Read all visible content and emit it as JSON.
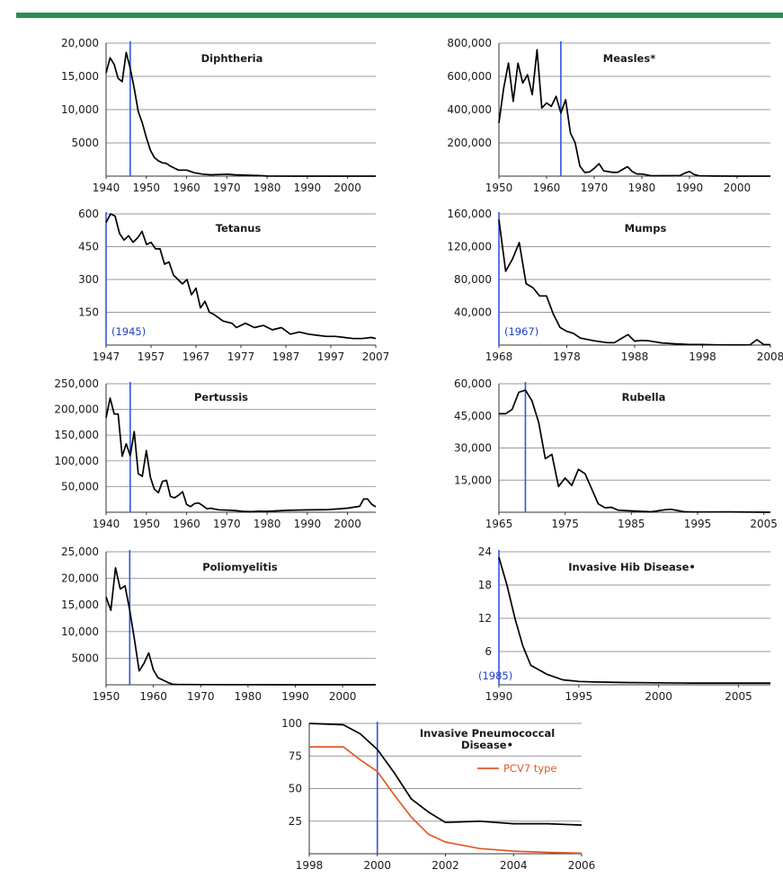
{
  "colors": {
    "series": "#000000",
    "series_alt": "#e05a2a",
    "marker": "#3355dd",
    "grid": "#999999",
    "header_bar": "#2e8b57"
  },
  "chart_data": [
    {
      "id": "diphtheria",
      "type": "line",
      "title": "Diphtheria",
      "xlim": [
        1940,
        2007
      ],
      "ylim": [
        0,
        20000
      ],
      "xticks": [
        1940,
        1950,
        1960,
        1970,
        1980,
        1990,
        2000
      ],
      "xtick_labels": [
        "1940",
        "1950",
        "1960",
        "1970",
        "1980",
        "1990",
        "2000"
      ],
      "yticks": [
        5000,
        10000,
        15000,
        20000
      ],
      "ytick_labels": [
        "5000",
        "10,000",
        "15,000",
        "20,000"
      ],
      "marker_x": 1946,
      "annotation": "",
      "series": [
        {
          "x": [
            1940,
            1941,
            1942,
            1943,
            1944,
            1945,
            1946,
            1947,
            1948,
            1949,
            1950,
            1951,
            1952,
            1953,
            1954,
            1955,
            1956,
            1957,
            1958,
            1960,
            1962,
            1964,
            1966,
            1968,
            1970,
            1972,
            1974,
            1976,
            1978,
            1980,
            1985,
            1990,
            1995,
            2000,
            2007
          ],
          "y": [
            15500,
            17800,
            16800,
            14700,
            14200,
            18600,
            16200,
            13200,
            9700,
            8000,
            5800,
            3900,
            2800,
            2300,
            2000,
            1900,
            1500,
            1200,
            900,
            900,
            500,
            300,
            200,
            250,
            300,
            200,
            180,
            120,
            80,
            20,
            5,
            5,
            5,
            5,
            0
          ]
        }
      ]
    },
    {
      "id": "measles",
      "type": "line",
      "title": "Measles*",
      "xlim": [
        1950,
        2007
      ],
      "ylim": [
        0,
        800000
      ],
      "xticks": [
        1950,
        1960,
        1970,
        1980,
        1990,
        2000
      ],
      "xtick_labels": [
        "1950",
        "1960",
        "1970",
        "1980",
        "1990",
        "2000"
      ],
      "yticks": [
        200000,
        400000,
        600000,
        800000
      ],
      "ytick_labels": [
        "200,000",
        "400,000",
        "600,000",
        "800,000"
      ],
      "marker_x": 1963,
      "annotation": "",
      "series": [
        {
          "x": [
            1950,
            1951,
            1952,
            1953,
            1954,
            1955,
            1956,
            1957,
            1958,
            1959,
            1960,
            1961,
            1962,
            1963,
            1964,
            1965,
            1966,
            1967,
            1968,
            1969,
            1970,
            1971,
            1972,
            1973,
            1974,
            1975,
            1976,
            1977,
            1978,
            1979,
            1980,
            1982,
            1985,
            1988,
            1989,
            1990,
            1991,
            1992,
            1995,
            2000,
            2007
          ],
          "y": [
            320000,
            530000,
            680000,
            450000,
            680000,
            560000,
            610000,
            490000,
            760000,
            410000,
            440000,
            420000,
            480000,
            380000,
            460000,
            260000,
            200000,
            60000,
            22000,
            25000,
            47000,
            75000,
            32000,
            27000,
            22000,
            24000,
            41000,
            57000,
            27000,
            13000,
            13000,
            2000,
            2800,
            3400,
            18000,
            28000,
            9600,
            2200,
            300,
            90,
            40
          ]
        }
      ]
    },
    {
      "id": "tetanus",
      "type": "line",
      "title": "Tetanus",
      "xlim": [
        1947,
        2007
      ],
      "ylim": [
        0,
        600
      ],
      "xticks": [
        1947,
        1957,
        1967,
        1977,
        1987,
        1997,
        2007
      ],
      "xtick_labels": [
        "1947",
        "1957",
        "1967",
        "1977",
        "1987",
        "1997",
        "2007"
      ],
      "yticks": [
        150,
        300,
        450,
        600
      ],
      "ytick_labels": [
        "150",
        "300",
        "450",
        "600"
      ],
      "marker_x": 1947,
      "annotation": "(1945)",
      "series": [
        {
          "x": [
            1947,
            1948,
            1949,
            1950,
            1951,
            1952,
            1953,
            1954,
            1955,
            1956,
            1957,
            1958,
            1959,
            1960,
            1961,
            1962,
            1963,
            1964,
            1965,
            1966,
            1967,
            1968,
            1969,
            1970,
            1971,
            1973,
            1975,
            1976,
            1977,
            1978,
            1980,
            1982,
            1984,
            1986,
            1988,
            1990,
            1992,
            1994,
            1996,
            1998,
            2000,
            2002,
            2004,
            2006,
            2007
          ],
          "y": [
            560,
            600,
            590,
            510,
            480,
            500,
            470,
            490,
            520,
            460,
            470,
            440,
            440,
            370,
            380,
            320,
            300,
            280,
            300,
            230,
            260,
            170,
            200,
            150,
            140,
            110,
            100,
            80,
            90,
            100,
            80,
            90,
            70,
            80,
            50,
            60,
            50,
            45,
            40,
            40,
            35,
            30,
            30,
            35,
            30
          ]
        }
      ]
    },
    {
      "id": "mumps",
      "type": "line",
      "title": "Mumps",
      "xlim": [
        1968,
        2008
      ],
      "ylim": [
        0,
        160000
      ],
      "xticks": [
        1968,
        1978,
        1988,
        1998,
        2008
      ],
      "xtick_labels": [
        "1968",
        "1978",
        "1988",
        "1998",
        "2008"
      ],
      "yticks": [
        40000,
        80000,
        120000,
        160000
      ],
      "ytick_labels": [
        "40,000",
        "80,000",
        "120,000",
        "160,000"
      ],
      "marker_x": 1968,
      "annotation": "(1967)",
      "series": [
        {
          "x": [
            1968,
            1969,
            1970,
            1971,
            1972,
            1973,
            1974,
            1975,
            1976,
            1977,
            1978,
            1979,
            1980,
            1982,
            1984,
            1985,
            1986,
            1987,
            1988,
            1989,
            1990,
            1992,
            1994,
            1996,
            1998,
            2000,
            2002,
            2004,
            2005,
            2006,
            2007,
            2008
          ],
          "y": [
            153000,
            90000,
            105000,
            125000,
            75000,
            70000,
            60000,
            60000,
            38000,
            21500,
            16800,
            14200,
            8600,
            5300,
            3000,
            3000,
            7800,
            12800,
            4800,
            5700,
            5300,
            2600,
            1500,
            750,
            650,
            340,
            270,
            260,
            300,
            6600,
            800,
            450
          ]
        }
      ]
    },
    {
      "id": "pertussis",
      "type": "line",
      "title": "Pertussis",
      "xlim": [
        1940,
        2007
      ],
      "ylim": [
        0,
        250000
      ],
      "xticks": [
        1940,
        1950,
        1960,
        1970,
        1980,
        1990,
        2000
      ],
      "xtick_labels": [
        "1940",
        "1950",
        "1960",
        "1970",
        "1980",
        "1990",
        "2000"
      ],
      "yticks": [
        50000,
        100000,
        150000,
        200000,
        250000
      ],
      "ytick_labels": [
        "50,000",
        "100,000",
        "150,000",
        "200,000",
        "250,000"
      ],
      "marker_x": 1946,
      "annotation": "",
      "series": [
        {
          "x": [
            1940,
            1941,
            1942,
            1943,
            1944,
            1945,
            1946,
            1947,
            1948,
            1949,
            1950,
            1951,
            1952,
            1953,
            1954,
            1955,
            1956,
            1957,
            1958,
            1959,
            1960,
            1961,
            1962,
            1963,
            1964,
            1965,
            1966,
            1968,
            1970,
            1972,
            1974,
            1976,
            1978,
            1980,
            1985,
            1990,
            1995,
            2000,
            2003,
            2004,
            2005,
            2006,
            2007
          ],
          "y": [
            184000,
            222000,
            191000,
            191000,
            109000,
            133000,
            110000,
            157000,
            75000,
            70000,
            120000,
            68000,
            45000,
            38000,
            60000,
            62000,
            31000,
            28000,
            33000,
            40000,
            15000,
            11000,
            17000,
            18000,
            13000,
            7000,
            7700,
            4800,
            4200,
            3300,
            1800,
            1000,
            2000,
            1700,
            3600,
            4600,
            5100,
            7900,
            11600,
            25800,
            25600,
            15600,
            10500
          ]
        }
      ]
    },
    {
      "id": "rubella",
      "type": "line",
      "title": "Rubella",
      "xlim": [
        1965,
        2006
      ],
      "ylim": [
        0,
        60000
      ],
      "xticks": [
        1965,
        1975,
        1985,
        1995,
        2005
      ],
      "xtick_labels": [
        "1965",
        "1975",
        "1985",
        "1995",
        "2005"
      ],
      "yticks": [
        15000,
        30000,
        45000,
        60000
      ],
      "ytick_labels": [
        "15,000",
        "30,000",
        "45,000",
        "60,000"
      ],
      "marker_x": 1969,
      "annotation": "",
      "series": [
        {
          "x": [
            1965,
            1966,
            1967,
            1968,
            1969,
            1970,
            1971,
            1972,
            1973,
            1974,
            1975,
            1976,
            1977,
            1978,
            1979,
            1980,
            1981,
            1982,
            1983,
            1985,
            1988,
            1990,
            1991,
            1993,
            1995,
            2000,
            2006
          ],
          "y": [
            46000,
            46000,
            48000,
            56000,
            57000,
            52000,
            42000,
            25000,
            27000,
            12000,
            16000,
            12500,
            20000,
            18000,
            11000,
            3900,
            2100,
            2300,
            970,
            630,
            225,
            1125,
            1400,
            190,
            130,
            180,
            11
          ]
        }
      ]
    },
    {
      "id": "poliomyelitis",
      "type": "line",
      "title": "Poliomyelitis",
      "xlim": [
        1950,
        2007
      ],
      "ylim": [
        0,
        25000
      ],
      "xticks": [
        1950,
        1960,
        1970,
        1980,
        1990,
        2000
      ],
      "xtick_labels": [
        "1950",
        "1960",
        "1970",
        "1980",
        "1990",
        "2000"
      ],
      "yticks": [
        5000,
        10000,
        15000,
        20000,
        25000
      ],
      "ytick_labels": [
        "5000",
        "10,000",
        "15,000",
        "20,000",
        "25,000"
      ],
      "marker_x": 1955,
      "annotation": "",
      "series": [
        {
          "x": [
            1950,
            1951,
            1952,
            1953,
            1954,
            1955,
            1956,
            1957,
            1958,
            1959,
            1960,
            1961,
            1962,
            1963,
            1964,
            1965,
            1970,
            1980,
            1990,
            2000,
            2007
          ],
          "y": [
            16500,
            14000,
            22000,
            18000,
            18600,
            14000,
            8500,
            2600,
            4000,
            6000,
            2800,
            1300,
            900,
            450,
            120,
            70,
            30,
            10,
            5,
            0,
            0
          ]
        }
      ]
    },
    {
      "id": "hib",
      "type": "line",
      "title": "Invasive Hib Disease•",
      "xlim": [
        1990,
        2007
      ],
      "ylim": [
        0,
        24
      ],
      "xticks": [
        1990,
        1995,
        2000,
        2005
      ],
      "xtick_labels": [
        "1990",
        "1995",
        "2000",
        "2005"
      ],
      "yticks": [
        6,
        12,
        18,
        24
      ],
      "ytick_labels": [
        "6",
        "12",
        "18",
        "24"
      ],
      "marker_x": 1990,
      "annotation": "(1985)",
      "series": [
        {
          "x": [
            1990,
            1990.5,
            1991,
            1991.5,
            1992,
            1993,
            1994,
            1995,
            1996,
            1998,
            2000,
            2002,
            2005,
            2007
          ],
          "y": [
            23,
            18,
            12,
            7,
            3.5,
            1.9,
            0.9,
            0.6,
            0.5,
            0.4,
            0.35,
            0.3,
            0.3,
            0.3
          ]
        }
      ]
    },
    {
      "id": "pneumococcal",
      "type": "line",
      "title": "Invasive Pneumococcal",
      "title_line2": "Disease•",
      "xlim": [
        1998,
        2006
      ],
      "ylim": [
        0,
        100
      ],
      "xticks": [
        1998,
        2000,
        2002,
        2004,
        2006
      ],
      "xtick_labels": [
        "1998",
        "2000",
        "2002",
        "2004",
        "2006"
      ],
      "yticks": [
        25,
        50,
        75,
        100
      ],
      "ytick_labels": [
        "25",
        "50",
        "75",
        "100"
      ],
      "marker_x": 2000,
      "annotation": "",
      "series": [
        {
          "x": [
            1998,
            1999,
            1999.5,
            2000,
            2000.5,
            2001,
            2001.5,
            2002,
            2003,
            2004,
            2005,
            2006
          ],
          "y": [
            100,
            99,
            92,
            80,
            62,
            42,
            32,
            24,
            25,
            23,
            23,
            22
          ]
        },
        {
          "name": "PCV7 type",
          "x": [
            1998,
            1999,
            1999.5,
            2000,
            2000.5,
            2001,
            2001.5,
            2002,
            2003,
            2004,
            2005,
            2006
          ],
          "y": [
            82,
            82,
            72,
            63,
            45,
            28,
            15,
            9,
            4,
            2,
            1,
            0.5
          ]
        }
      ]
    }
  ]
}
